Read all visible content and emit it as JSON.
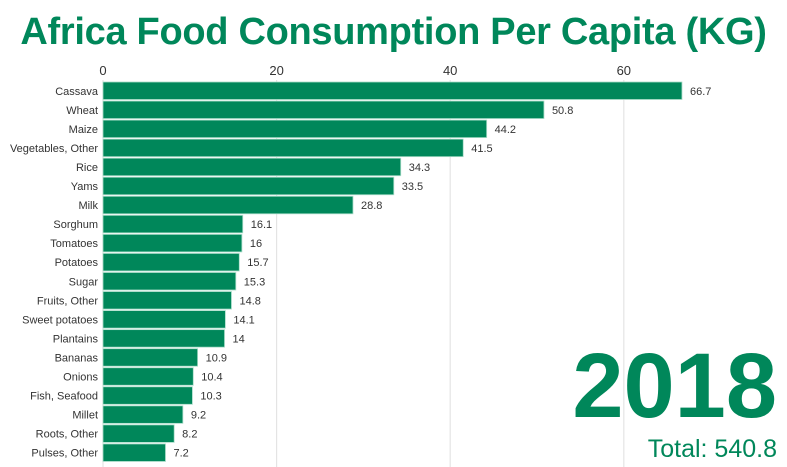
{
  "chart_data": {
    "type": "bar",
    "orientation": "horizontal",
    "title": "Africa Food Consumption Per Capita (KG)",
    "year": "2018",
    "total_label": "Total: 540.8",
    "bar_color": "#00875a",
    "xlim": [
      0,
      70
    ],
    "xticks": [
      0,
      20,
      40,
      60
    ],
    "grid": true,
    "categories": [
      "Cassava",
      "Wheat",
      "Maize",
      "Vegetables, Other",
      "Rice",
      "Yams",
      "Milk",
      "Sorghum",
      "Tomatoes",
      "Potatoes",
      "Sugar",
      "Fruits, Other",
      "Sweet potatoes",
      "Plantains",
      "Bananas",
      "Onions",
      "Fish, Seafood",
      "Millet",
      "Roots, Other",
      "Pulses, Other"
    ],
    "values": [
      66.7,
      50.8,
      44.2,
      41.5,
      34.3,
      33.5,
      28.8,
      16.1,
      16,
      15.7,
      15.3,
      14.8,
      14.1,
      14,
      10.9,
      10.4,
      10.3,
      9.2,
      8.2,
      7.2
    ]
  }
}
